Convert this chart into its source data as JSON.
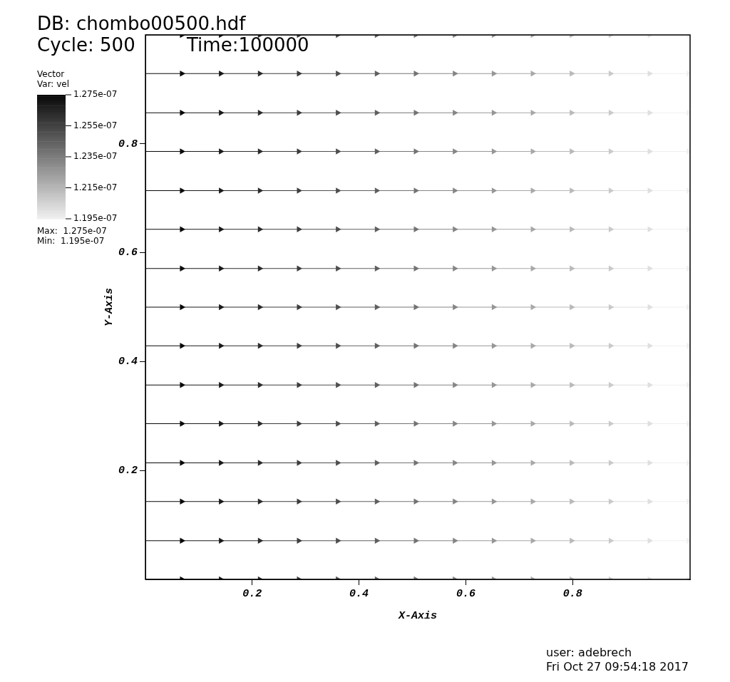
{
  "chart_data": {
    "type": "scatter",
    "xlabel": "X-Axis",
    "ylabel": "Y-Axis",
    "legend_title": "Vector",
    "clabel": "Var: vel",
    "annotations": [
      "DB: chombo00500.hdf",
      "Cycle: 500",
      "Time:100000",
      "Max:  1.275e-07",
      "Min:  1.195e-07",
      "user: adebrech",
      "Fri Oct 27 09:54:18 2017"
    ],
    "x": [
      0.068,
      0.141,
      0.214,
      0.287,
      0.36,
      0.433,
      0.506,
      0.579,
      0.652,
      0.725,
      0.798,
      0.871,
      0.944,
      1.017
    ],
    "series": [
      {
        "values": [
          0,
          0,
          0,
          0,
          0,
          0,
          0,
          0,
          0,
          0,
          0,
          0,
          0,
          0
        ],
        "colors": [
          "#080808",
          "#191919",
          "#2b2b2b",
          "#3c3c3c",
          "#4e4e4e",
          "#5f5f5f",
          "#737373",
          "#858585",
          "#969696",
          "#a8a8a8",
          "#b9b9b9",
          "#cacaca",
          "#dfdfdf",
          "#f0f0f0"
        ],
        "cvalues": [
          1.275e-07,
          1.269e-07,
          1.263e-07,
          1.257e-07,
          1.251e-07,
          1.245e-07,
          1.238e-07,
          1.232e-07,
          1.226e-07,
          1.22e-07,
          1.214e-07,
          1.208e-07,
          1.201e-07,
          1.195e-07
        ],
        "xerrors": [
          [
            0,
            0.068
          ],
          [
            0.068,
            0.141
          ],
          [
            0.141,
            0.214
          ],
          [
            0.214,
            0.287
          ],
          [
            0.287,
            0.36
          ],
          [
            0.36,
            0.433
          ],
          [
            0.433,
            0.506
          ],
          [
            0.506,
            0.579
          ],
          [
            0.579,
            0.652
          ],
          [
            0.652,
            0.725
          ],
          [
            0.725,
            0.798
          ],
          [
            0.798,
            0.871
          ],
          [
            0.871,
            0.944
          ],
          [
            0.944,
            1.017
          ]
        ]
      },
      {
        "values": [
          0.071,
          0.071,
          0.071,
          0.071,
          0.071,
          0.071,
          0.071,
          0.071,
          0.071,
          0.071,
          0.071,
          0.071,
          0.071,
          0.071
        ],
        "colors": [
          "#080808",
          "#191919",
          "#2b2b2b",
          "#3c3c3c",
          "#4e4e4e",
          "#5f5f5f",
          "#737373",
          "#858585",
          "#969696",
          "#a8a8a8",
          "#b9b9b9",
          "#cacaca",
          "#dfdfdf",
          "#f0f0f0"
        ],
        "cvalues": [
          1.275e-07,
          1.269e-07,
          1.263e-07,
          1.257e-07,
          1.251e-07,
          1.245e-07,
          1.238e-07,
          1.232e-07,
          1.226e-07,
          1.22e-07,
          1.214e-07,
          1.208e-07,
          1.201e-07,
          1.195e-07
        ],
        "xerrors": [
          [
            0,
            0.068
          ],
          [
            0.068,
            0.141
          ],
          [
            0.141,
            0.214
          ],
          [
            0.214,
            0.287
          ],
          [
            0.287,
            0.36
          ],
          [
            0.36,
            0.433
          ],
          [
            0.433,
            0.506
          ],
          [
            0.506,
            0.579
          ],
          [
            0.579,
            0.652
          ],
          [
            0.652,
            0.725
          ],
          [
            0.725,
            0.798
          ],
          [
            0.798,
            0.871
          ],
          [
            0.871,
            0.944
          ],
          [
            0.944,
            1.017
          ]
        ]
      },
      {
        "values": [
          0.143,
          0.143,
          0.143,
          0.143,
          0.143,
          0.143,
          0.143,
          0.143,
          0.143,
          0.143,
          0.143,
          0.143,
          0.143,
          0.143
        ],
        "colors": [
          "#080808",
          "#191919",
          "#2b2b2b",
          "#3c3c3c",
          "#4e4e4e",
          "#5f5f5f",
          "#737373",
          "#858585",
          "#969696",
          "#a8a8a8",
          "#b9b9b9",
          "#cacaca",
          "#dfdfdf",
          "#f0f0f0"
        ],
        "cvalues": [
          1.275e-07,
          1.269e-07,
          1.263e-07,
          1.257e-07,
          1.251e-07,
          1.245e-07,
          1.238e-07,
          1.232e-07,
          1.226e-07,
          1.22e-07,
          1.214e-07,
          1.208e-07,
          1.201e-07,
          1.195e-07
        ],
        "xerrors": [
          [
            0,
            0.068
          ],
          [
            0.068,
            0.141
          ],
          [
            0.141,
            0.214
          ],
          [
            0.214,
            0.287
          ],
          [
            0.287,
            0.36
          ],
          [
            0.36,
            0.433
          ],
          [
            0.433,
            0.506
          ],
          [
            0.506,
            0.579
          ],
          [
            0.579,
            0.652
          ],
          [
            0.652,
            0.725
          ],
          [
            0.725,
            0.798
          ],
          [
            0.798,
            0.871
          ],
          [
            0.871,
            0.944
          ],
          [
            0.944,
            1.017
          ]
        ]
      },
      {
        "values": [
          0.214,
          0.214,
          0.214,
          0.214,
          0.214,
          0.214,
          0.214,
          0.214,
          0.214,
          0.214,
          0.214,
          0.214,
          0.214,
          0.214
        ],
        "colors": [
          "#080808",
          "#191919",
          "#2b2b2b",
          "#3c3c3c",
          "#4e4e4e",
          "#5f5f5f",
          "#737373",
          "#858585",
          "#969696",
          "#a8a8a8",
          "#b9b9b9",
          "#cacaca",
          "#dfdfdf",
          "#f0f0f0"
        ],
        "cvalues": [
          1.275e-07,
          1.269e-07,
          1.263e-07,
          1.257e-07,
          1.251e-07,
          1.245e-07,
          1.238e-07,
          1.232e-07,
          1.226e-07,
          1.22e-07,
          1.214e-07,
          1.208e-07,
          1.201e-07,
          1.195e-07
        ],
        "xerrors": [
          [
            0,
            0.068
          ],
          [
            0.068,
            0.141
          ],
          [
            0.141,
            0.214
          ],
          [
            0.214,
            0.287
          ],
          [
            0.287,
            0.36
          ],
          [
            0.36,
            0.433
          ],
          [
            0.433,
            0.506
          ],
          [
            0.506,
            0.579
          ],
          [
            0.579,
            0.652
          ],
          [
            0.652,
            0.725
          ],
          [
            0.725,
            0.798
          ],
          [
            0.798,
            0.871
          ],
          [
            0.871,
            0.944
          ],
          [
            0.944,
            1.017
          ]
        ]
      },
      {
        "values": [
          0.286,
          0.286,
          0.286,
          0.286,
          0.286,
          0.286,
          0.286,
          0.286,
          0.286,
          0.286,
          0.286,
          0.286,
          0.286,
          0.286
        ],
        "colors": [
          "#080808",
          "#191919",
          "#2b2b2b",
          "#3c3c3c",
          "#4e4e4e",
          "#5f5f5f",
          "#737373",
          "#858585",
          "#969696",
          "#a8a8a8",
          "#b9b9b9",
          "#cacaca",
          "#dfdfdf",
          "#f0f0f0"
        ],
        "cvalues": [
          1.275e-07,
          1.269e-07,
          1.263e-07,
          1.257e-07,
          1.251e-07,
          1.245e-07,
          1.238e-07,
          1.232e-07,
          1.226e-07,
          1.22e-07,
          1.214e-07,
          1.208e-07,
          1.201e-07,
          1.195e-07
        ],
        "xerrors": [
          [
            0,
            0.068
          ],
          [
            0.068,
            0.141
          ],
          [
            0.141,
            0.214
          ],
          [
            0.214,
            0.287
          ],
          [
            0.287,
            0.36
          ],
          [
            0.36,
            0.433
          ],
          [
            0.433,
            0.506
          ],
          [
            0.506,
            0.579
          ],
          [
            0.579,
            0.652
          ],
          [
            0.652,
            0.725
          ],
          [
            0.725,
            0.798
          ],
          [
            0.798,
            0.871
          ],
          [
            0.871,
            0.944
          ],
          [
            0.944,
            1.017
          ]
        ]
      },
      {
        "values": [
          0.357,
          0.357,
          0.357,
          0.357,
          0.357,
          0.357,
          0.357,
          0.357,
          0.357,
          0.357,
          0.357,
          0.357,
          0.357,
          0.357
        ],
        "colors": [
          "#080808",
          "#191919",
          "#2b2b2b",
          "#3c3c3c",
          "#4e4e4e",
          "#5f5f5f",
          "#737373",
          "#858585",
          "#969696",
          "#a8a8a8",
          "#b9b9b9",
          "#cacaca",
          "#dfdfdf",
          "#f0f0f0"
        ],
        "cvalues": [
          1.275e-07,
          1.269e-07,
          1.263e-07,
          1.257e-07,
          1.251e-07,
          1.245e-07,
          1.238e-07,
          1.232e-07,
          1.226e-07,
          1.22e-07,
          1.214e-07,
          1.208e-07,
          1.201e-07,
          1.195e-07
        ],
        "xerrors": [
          [
            0,
            0.068
          ],
          [
            0.068,
            0.141
          ],
          [
            0.141,
            0.214
          ],
          [
            0.214,
            0.287
          ],
          [
            0.287,
            0.36
          ],
          [
            0.36,
            0.433
          ],
          [
            0.433,
            0.506
          ],
          [
            0.506,
            0.579
          ],
          [
            0.579,
            0.652
          ],
          [
            0.652,
            0.725
          ],
          [
            0.725,
            0.798
          ],
          [
            0.798,
            0.871
          ],
          [
            0.871,
            0.944
          ],
          [
            0.944,
            1.017
          ]
        ]
      },
      {
        "values": [
          0.429,
          0.429,
          0.429,
          0.429,
          0.429,
          0.429,
          0.429,
          0.429,
          0.429,
          0.429,
          0.429,
          0.429,
          0.429,
          0.429
        ],
        "colors": [
          "#080808",
          "#191919",
          "#2b2b2b",
          "#3c3c3c",
          "#4e4e4e",
          "#5f5f5f",
          "#737373",
          "#858585",
          "#969696",
          "#a8a8a8",
          "#b9b9b9",
          "#cacaca",
          "#dfdfdf",
          "#f0f0f0"
        ],
        "cvalues": [
          1.275e-07,
          1.269e-07,
          1.263e-07,
          1.257e-07,
          1.251e-07,
          1.245e-07,
          1.238e-07,
          1.232e-07,
          1.226e-07,
          1.22e-07,
          1.214e-07,
          1.208e-07,
          1.201e-07,
          1.195e-07
        ],
        "xerrors": [
          [
            0,
            0.068
          ],
          [
            0.068,
            0.141
          ],
          [
            0.141,
            0.214
          ],
          [
            0.214,
            0.287
          ],
          [
            0.287,
            0.36
          ],
          [
            0.36,
            0.433
          ],
          [
            0.433,
            0.506
          ],
          [
            0.506,
            0.579
          ],
          [
            0.579,
            0.652
          ],
          [
            0.652,
            0.725
          ],
          [
            0.725,
            0.798
          ],
          [
            0.798,
            0.871
          ],
          [
            0.871,
            0.944
          ],
          [
            0.944,
            1.017
          ]
        ]
      },
      {
        "values": [
          0.5,
          0.5,
          0.5,
          0.5,
          0.5,
          0.5,
          0.5,
          0.5,
          0.5,
          0.5,
          0.5,
          0.5,
          0.5,
          0.5
        ],
        "colors": [
          "#080808",
          "#191919",
          "#2b2b2b",
          "#3c3c3c",
          "#4e4e4e",
          "#5f5f5f",
          "#737373",
          "#858585",
          "#969696",
          "#a8a8a8",
          "#b9b9b9",
          "#cacaca",
          "#dfdfdf",
          "#f0f0f0"
        ],
        "cvalues": [
          1.275e-07,
          1.269e-07,
          1.263e-07,
          1.257e-07,
          1.251e-07,
          1.245e-07,
          1.238e-07,
          1.232e-07,
          1.226e-07,
          1.22e-07,
          1.214e-07,
          1.208e-07,
          1.201e-07,
          1.195e-07
        ],
        "xerrors": [
          [
            0,
            0.068
          ],
          [
            0.068,
            0.141
          ],
          [
            0.141,
            0.214
          ],
          [
            0.214,
            0.287
          ],
          [
            0.287,
            0.36
          ],
          [
            0.36,
            0.433
          ],
          [
            0.433,
            0.506
          ],
          [
            0.506,
            0.579
          ],
          [
            0.579,
            0.652
          ],
          [
            0.652,
            0.725
          ],
          [
            0.725,
            0.798
          ],
          [
            0.798,
            0.871
          ],
          [
            0.871,
            0.944
          ],
          [
            0.944,
            1.017
          ]
        ]
      },
      {
        "values": [
          0.571,
          0.571,
          0.571,
          0.571,
          0.571,
          0.571,
          0.571,
          0.571,
          0.571,
          0.571,
          0.571,
          0.571,
          0.571,
          0.571
        ],
        "colors": [
          "#080808",
          "#191919",
          "#2b2b2b",
          "#3c3c3c",
          "#4e4e4e",
          "#5f5f5f",
          "#737373",
          "#858585",
          "#969696",
          "#a8a8a8",
          "#b9b9b9",
          "#cacaca",
          "#dfdfdf",
          "#f0f0f0"
        ],
        "cvalues": [
          1.275e-07,
          1.269e-07,
          1.263e-07,
          1.257e-07,
          1.251e-07,
          1.245e-07,
          1.238e-07,
          1.232e-07,
          1.226e-07,
          1.22e-07,
          1.214e-07,
          1.208e-07,
          1.201e-07,
          1.195e-07
        ],
        "xerrors": [
          [
            0,
            0.068
          ],
          [
            0.068,
            0.141
          ],
          [
            0.141,
            0.214
          ],
          [
            0.214,
            0.287
          ],
          [
            0.287,
            0.36
          ],
          [
            0.36,
            0.433
          ],
          [
            0.433,
            0.506
          ],
          [
            0.506,
            0.579
          ],
          [
            0.579,
            0.652
          ],
          [
            0.652,
            0.725
          ],
          [
            0.725,
            0.798
          ],
          [
            0.798,
            0.871
          ],
          [
            0.871,
            0.944
          ],
          [
            0.944,
            1.017
          ]
        ]
      },
      {
        "values": [
          0.643,
          0.643,
          0.643,
          0.643,
          0.643,
          0.643,
          0.643,
          0.643,
          0.643,
          0.643,
          0.643,
          0.643,
          0.643,
          0.643
        ],
        "colors": [
          "#080808",
          "#191919",
          "#2b2b2b",
          "#3c3c3c",
          "#4e4e4e",
          "#5f5f5f",
          "#737373",
          "#858585",
          "#969696",
          "#a8a8a8",
          "#b9b9b9",
          "#cacaca",
          "#dfdfdf",
          "#f0f0f0"
        ],
        "cvalues": [
          1.275e-07,
          1.269e-07,
          1.263e-07,
          1.257e-07,
          1.251e-07,
          1.245e-07,
          1.238e-07,
          1.232e-07,
          1.226e-07,
          1.22e-07,
          1.214e-07,
          1.208e-07,
          1.201e-07,
          1.195e-07
        ],
        "xerrors": [
          [
            0,
            0.068
          ],
          [
            0.068,
            0.141
          ],
          [
            0.141,
            0.214
          ],
          [
            0.214,
            0.287
          ],
          [
            0.287,
            0.36
          ],
          [
            0.36,
            0.433
          ],
          [
            0.433,
            0.506
          ],
          [
            0.506,
            0.579
          ],
          [
            0.579,
            0.652
          ],
          [
            0.652,
            0.725
          ],
          [
            0.725,
            0.798
          ],
          [
            0.798,
            0.871
          ],
          [
            0.871,
            0.944
          ],
          [
            0.944,
            1.017
          ]
        ]
      },
      {
        "values": [
          0.714,
          0.714,
          0.714,
          0.714,
          0.714,
          0.714,
          0.714,
          0.714,
          0.714,
          0.714,
          0.714,
          0.714,
          0.714,
          0.714
        ],
        "colors": [
          "#080808",
          "#191919",
          "#2b2b2b",
          "#3c3c3c",
          "#4e4e4e",
          "#5f5f5f",
          "#737373",
          "#858585",
          "#969696",
          "#a8a8a8",
          "#b9b9b9",
          "#cacaca",
          "#dfdfdf",
          "#f0f0f0"
        ],
        "cvalues": [
          1.275e-07,
          1.269e-07,
          1.263e-07,
          1.257e-07,
          1.251e-07,
          1.245e-07,
          1.238e-07,
          1.232e-07,
          1.226e-07,
          1.22e-07,
          1.214e-07,
          1.208e-07,
          1.201e-07,
          1.195e-07
        ],
        "xerrors": [
          [
            0,
            0.068
          ],
          [
            0.068,
            0.141
          ],
          [
            0.141,
            0.214
          ],
          [
            0.214,
            0.287
          ],
          [
            0.287,
            0.36
          ],
          [
            0.36,
            0.433
          ],
          [
            0.433,
            0.506
          ],
          [
            0.506,
            0.579
          ],
          [
            0.579,
            0.652
          ],
          [
            0.652,
            0.725
          ],
          [
            0.725,
            0.798
          ],
          [
            0.798,
            0.871
          ],
          [
            0.871,
            0.944
          ],
          [
            0.944,
            1.017
          ]
        ]
      },
      {
        "values": [
          0.786,
          0.786,
          0.786,
          0.786,
          0.786,
          0.786,
          0.786,
          0.786,
          0.786,
          0.786,
          0.786,
          0.786,
          0.786,
          0.786
        ],
        "colors": [
          "#080808",
          "#191919",
          "#2b2b2b",
          "#3c3c3c",
          "#4e4e4e",
          "#5f5f5f",
          "#737373",
          "#858585",
          "#969696",
          "#a8a8a8",
          "#b9b9b9",
          "#cacaca",
          "#dfdfdf",
          "#f0f0f0"
        ],
        "cvalues": [
          1.275e-07,
          1.269e-07,
          1.263e-07,
          1.257e-07,
          1.251e-07,
          1.245e-07,
          1.238e-07,
          1.232e-07,
          1.226e-07,
          1.22e-07,
          1.214e-07,
          1.208e-07,
          1.201e-07,
          1.195e-07
        ],
        "xerrors": [
          [
            0,
            0.068
          ],
          [
            0.068,
            0.141
          ],
          [
            0.141,
            0.214
          ],
          [
            0.214,
            0.287
          ],
          [
            0.287,
            0.36
          ],
          [
            0.36,
            0.433
          ],
          [
            0.433,
            0.506
          ],
          [
            0.506,
            0.579
          ],
          [
            0.579,
            0.652
          ],
          [
            0.652,
            0.725
          ],
          [
            0.725,
            0.798
          ],
          [
            0.798,
            0.871
          ],
          [
            0.871,
            0.944
          ],
          [
            0.944,
            1.017
          ]
        ]
      },
      {
        "values": [
          0.857,
          0.857,
          0.857,
          0.857,
          0.857,
          0.857,
          0.857,
          0.857,
          0.857,
          0.857,
          0.857,
          0.857,
          0.857,
          0.857
        ],
        "colors": [
          "#080808",
          "#191919",
          "#2b2b2b",
          "#3c3c3c",
          "#4e4e4e",
          "#5f5f5f",
          "#737373",
          "#858585",
          "#969696",
          "#a8a8a8",
          "#b9b9b9",
          "#cacaca",
          "#dfdfdf",
          "#f0f0f0"
        ],
        "cvalues": [
          1.275e-07,
          1.269e-07,
          1.263e-07,
          1.257e-07,
          1.251e-07,
          1.245e-07,
          1.238e-07,
          1.232e-07,
          1.226e-07,
          1.22e-07,
          1.214e-07,
          1.208e-07,
          1.201e-07,
          1.195e-07
        ],
        "xerrors": [
          [
            0,
            0.068
          ],
          [
            0.068,
            0.141
          ],
          [
            0.141,
            0.214
          ],
          [
            0.214,
            0.287
          ],
          [
            0.287,
            0.36
          ],
          [
            0.36,
            0.433
          ],
          [
            0.433,
            0.506
          ],
          [
            0.506,
            0.579
          ],
          [
            0.579,
            0.652
          ],
          [
            0.652,
            0.725
          ],
          [
            0.725,
            0.798
          ],
          [
            0.798,
            0.871
          ],
          [
            0.871,
            0.944
          ],
          [
            0.944,
            1.017
          ]
        ]
      },
      {
        "values": [
          0.929,
          0.929,
          0.929,
          0.929,
          0.929,
          0.929,
          0.929,
          0.929,
          0.929,
          0.929,
          0.929,
          0.929,
          0.929,
          0.929
        ],
        "colors": [
          "#080808",
          "#191919",
          "#2b2b2b",
          "#3c3c3c",
          "#4e4e4e",
          "#5f5f5f",
          "#737373",
          "#858585",
          "#969696",
          "#a8a8a8",
          "#b9b9b9",
          "#cacaca",
          "#dfdfdf",
          "#f0f0f0"
        ],
        "cvalues": [
          1.275e-07,
          1.269e-07,
          1.263e-07,
          1.257e-07,
          1.251e-07,
          1.245e-07,
          1.238e-07,
          1.232e-07,
          1.226e-07,
          1.22e-07,
          1.214e-07,
          1.208e-07,
          1.201e-07,
          1.195e-07
        ],
        "xerrors": [
          [
            0,
            0.068
          ],
          [
            0.068,
            0.141
          ],
          [
            0.141,
            0.214
          ],
          [
            0.214,
            0.287
          ],
          [
            0.287,
            0.36
          ],
          [
            0.36,
            0.433
          ],
          [
            0.433,
            0.506
          ],
          [
            0.506,
            0.579
          ],
          [
            0.579,
            0.652
          ],
          [
            0.652,
            0.725
          ],
          [
            0.725,
            0.798
          ],
          [
            0.798,
            0.871
          ],
          [
            0.871,
            0.944
          ],
          [
            0.944,
            1.017
          ]
        ]
      },
      {
        "values": [
          1,
          1,
          1,
          1,
          1,
          1,
          1,
          1,
          1,
          1,
          1,
          1,
          1,
          1
        ],
        "colors": [
          "#080808",
          "#191919",
          "#2b2b2b",
          "#3c3c3c",
          "#4e4e4e",
          "#5f5f5f",
          "#737373",
          "#858585",
          "#969696",
          "#a8a8a8",
          "#b9b9b9",
          "#cacaca",
          "#dfdfdf",
          "#f0f0f0"
        ],
        "cvalues": [
          1.275e-07,
          1.269e-07,
          1.263e-07,
          1.257e-07,
          1.251e-07,
          1.245e-07,
          1.238e-07,
          1.232e-07,
          1.226e-07,
          1.22e-07,
          1.214e-07,
          1.208e-07,
          1.201e-07,
          1.195e-07
        ],
        "xerrors": [
          [
            0,
            0.068
          ],
          [
            0.068,
            0.141
          ],
          [
            0.141,
            0.214
          ],
          [
            0.214,
            0.287
          ],
          [
            0.287,
            0.36
          ],
          [
            0.36,
            0.433
          ],
          [
            0.433,
            0.506
          ],
          [
            0.506,
            0.579
          ],
          [
            0.579,
            0.652
          ],
          [
            0.652,
            0.725
          ],
          [
            0.725,
            0.798
          ],
          [
            0.798,
            0.871
          ],
          [
            0.871,
            0.944
          ],
          [
            0.944,
            1.017
          ]
        ]
      }
    ],
    "xlim": [
      0,
      1.02
    ],
    "ylim": [
      0,
      1
    ],
    "xticks": [
      0.2,
      0.4,
      0.6,
      0.8
    ],
    "yticks": [
      0.2,
      0.4,
      0.6,
      0.8
    ],
    "clim": [
      1.195e-07,
      1.275e-07
    ],
    "cticks": [
      {
        "value": 1.275e-07,
        "label": "1.275e-07"
      },
      {
        "value": 1.255e-07,
        "label": "1.255e-07"
      },
      {
        "value": 1.235e-07,
        "label": "1.235e-07"
      },
      {
        "value": 1.215e-07,
        "label": "1.215e-07"
      },
      {
        "value": 1.195e-07,
        "label": "1.195e-07"
      }
    ],
    "marker": "triangle",
    "grid": false,
    "legend": false
  }
}
